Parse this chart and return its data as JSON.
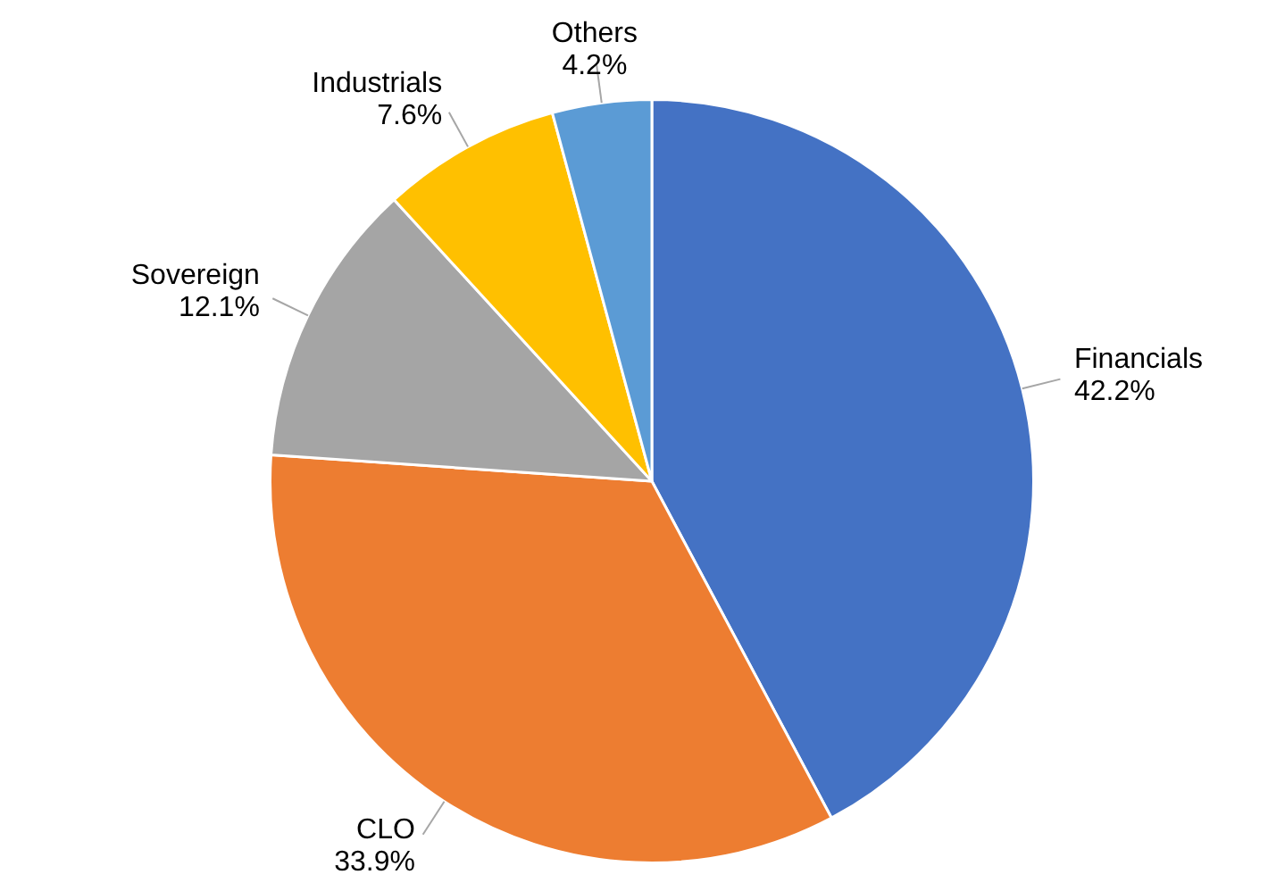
{
  "chart_data": {
    "type": "pie",
    "categories": [
      "Financials",
      "CLO",
      "Sovereign",
      "Industrials",
      "Others"
    ],
    "values": [
      42.2,
      33.9,
      12.1,
      7.6,
      4.2
    ],
    "colors": [
      "#4472c4",
      "#ed7d31",
      "#a5a5a5",
      "#ffc000",
      "#5b9bd5"
    ],
    "value_labels": [
      "42.2%",
      "33.9%",
      "12.1%",
      "7.6%",
      "4.2%"
    ],
    "legend": false
  }
}
